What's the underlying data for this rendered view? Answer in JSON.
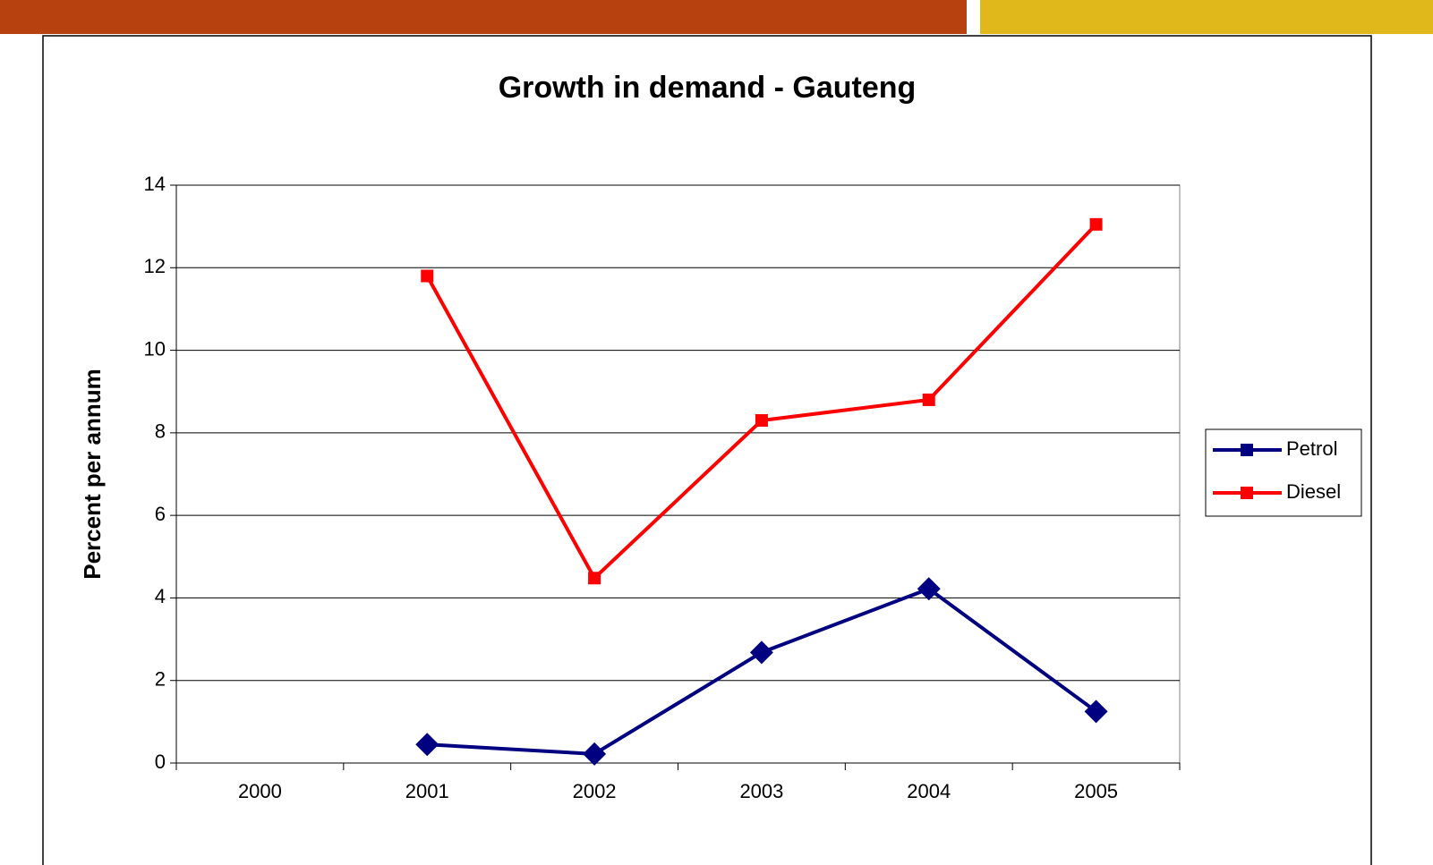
{
  "chart_data": {
    "type": "line",
    "title": "Growth in demand - Gauteng",
    "y_label": "Percent per annum",
    "categories": [
      "2000",
      "2001",
      "2002",
      "2003",
      "2004",
      "2005"
    ],
    "series": [
      {
        "name": "Petrol",
        "color": "#000080",
        "marker": "diamond",
        "values": [
          null,
          0.45,
          0.22,
          2.68,
          4.22,
          1.25
        ]
      },
      {
        "name": "Diesel",
        "color": "#ff0000",
        "marker": "square",
        "values": [
          null,
          11.8,
          4.48,
          8.3,
          8.8,
          13.05
        ]
      }
    ],
    "ylim": [
      0,
      14
    ],
    "yticks": [
      0,
      2,
      4,
      6,
      8,
      10,
      12,
      14
    ],
    "grid": true,
    "legend": "right"
  }
}
